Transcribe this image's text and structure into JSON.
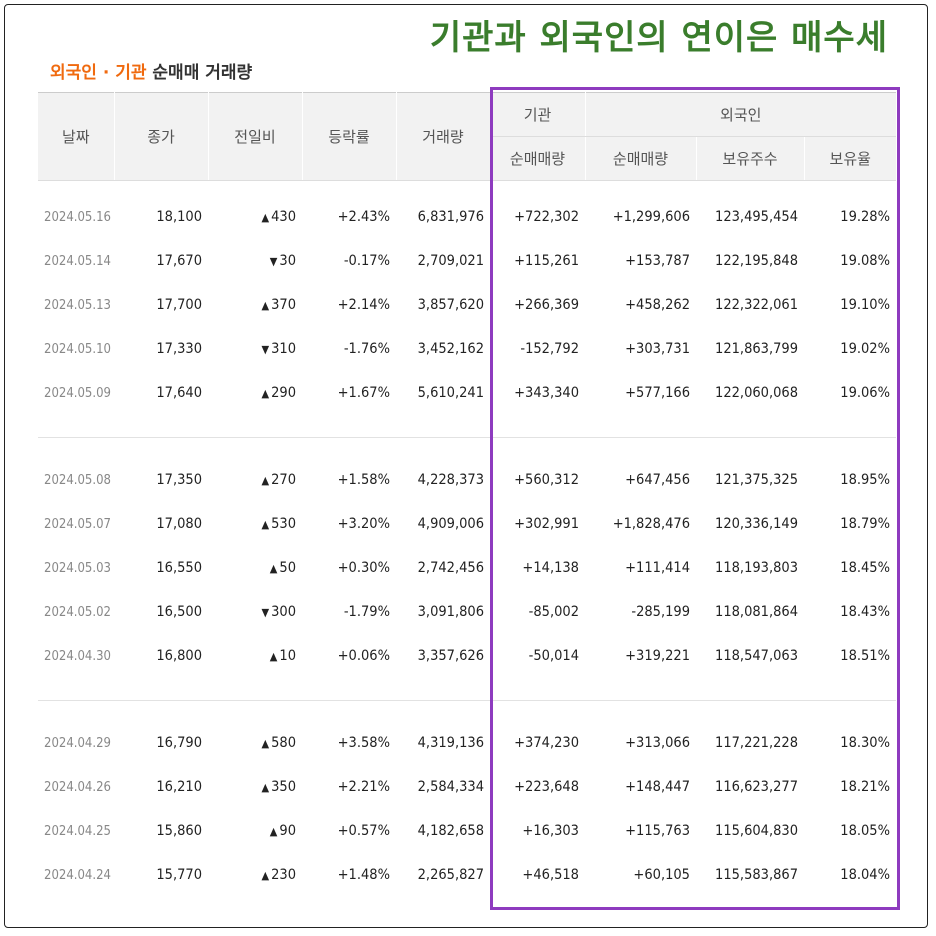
{
  "headline": "기관과 외국인의 연이은 매수세",
  "section_title": {
    "highlight": "외국인 · 기관",
    "rest": "순매매 거래량"
  },
  "headers": {
    "date": "날짜",
    "close": "종가",
    "change": "전일비",
    "rate": "등락률",
    "volume": "거래량",
    "institution": "기관",
    "foreign": "외국인",
    "inst_net": "순매매량",
    "foreign_net": "순매매량",
    "foreign_shares": "보유주수",
    "foreign_ratio": "보유율"
  },
  "groups": [
    {
      "rows": [
        {
          "date": "2024.05.16",
          "close": "18,100",
          "dir": "up",
          "change": "430",
          "rate": "+2.43%",
          "volume": "6,831,976",
          "inst": "+722,302",
          "foreign": "+1,299,606",
          "shares": "123,495,454",
          "ratio": "19.28%"
        },
        {
          "date": "2024.05.14",
          "close": "17,670",
          "dir": "down",
          "change": "30",
          "rate": "-0.17%",
          "volume": "2,709,021",
          "inst": "+115,261",
          "foreign": "+153,787",
          "shares": "122,195,848",
          "ratio": "19.08%"
        },
        {
          "date": "2024.05.13",
          "close": "17,700",
          "dir": "up",
          "change": "370",
          "rate": "+2.14%",
          "volume": "3,857,620",
          "inst": "+266,369",
          "foreign": "+458,262",
          "shares": "122,322,061",
          "ratio": "19.10%"
        },
        {
          "date": "2024.05.10",
          "close": "17,330",
          "dir": "down",
          "change": "310",
          "rate": "-1.76%",
          "volume": "3,452,162",
          "inst": "-152,792",
          "foreign": "+303,731",
          "shares": "121,863,799",
          "ratio": "19.02%"
        },
        {
          "date": "2024.05.09",
          "close": "17,640",
          "dir": "up",
          "change": "290",
          "rate": "+1.67%",
          "volume": "5,610,241",
          "inst": "+343,340",
          "foreign": "+577,166",
          "shares": "122,060,068",
          "ratio": "19.06%"
        }
      ]
    },
    {
      "rows": [
        {
          "date": "2024.05.08",
          "close": "17,350",
          "dir": "up",
          "change": "270",
          "rate": "+1.58%",
          "volume": "4,228,373",
          "inst": "+560,312",
          "foreign": "+647,456",
          "shares": "121,375,325",
          "ratio": "18.95%"
        },
        {
          "date": "2024.05.07",
          "close": "17,080",
          "dir": "up",
          "change": "530",
          "rate": "+3.20%",
          "volume": "4,909,006",
          "inst": "+302,991",
          "foreign": "+1,828,476",
          "shares": "120,336,149",
          "ratio": "18.79%"
        },
        {
          "date": "2024.05.03",
          "close": "16,550",
          "dir": "up",
          "change": "50",
          "rate": "+0.30%",
          "volume": "2,742,456",
          "inst": "+14,138",
          "foreign": "+111,414",
          "shares": "118,193,803",
          "ratio": "18.45%"
        },
        {
          "date": "2024.05.02",
          "close": "16,500",
          "dir": "down",
          "change": "300",
          "rate": "-1.79%",
          "volume": "3,091,806",
          "inst": "-85,002",
          "foreign": "-285,199",
          "shares": "118,081,864",
          "ratio": "18.43%"
        },
        {
          "date": "2024.04.30",
          "close": "16,800",
          "dir": "up",
          "change": "10",
          "rate": "+0.06%",
          "volume": "3,357,626",
          "inst": "-50,014",
          "foreign": "+319,221",
          "shares": "118,547,063",
          "ratio": "18.51%"
        }
      ]
    },
    {
      "rows": [
        {
          "date": "2024.04.29",
          "close": "16,790",
          "dir": "up",
          "change": "580",
          "rate": "+3.58%",
          "volume": "4,319,136",
          "inst": "+374,230",
          "foreign": "+313,066",
          "shares": "117,221,228",
          "ratio": "18.30%"
        },
        {
          "date": "2024.04.26",
          "close": "16,210",
          "dir": "up",
          "change": "350",
          "rate": "+2.21%",
          "volume": "2,584,334",
          "inst": "+223,648",
          "foreign": "+148,447",
          "shares": "116,623,277",
          "ratio": "18.21%"
        },
        {
          "date": "2024.04.25",
          "close": "15,860",
          "dir": "up",
          "change": "90",
          "rate": "+0.57%",
          "volume": "4,182,658",
          "inst": "+16,303",
          "foreign": "+115,763",
          "shares": "115,604,830",
          "ratio": "18.05%"
        },
        {
          "date": "2024.04.24",
          "close": "15,770",
          "dir": "up",
          "change": "230",
          "rate": "+1.48%",
          "volume": "2,265,827",
          "inst": "+46,518",
          "foreign": "+60,105",
          "shares": "115,583,867",
          "ratio": "18.04%"
        }
      ]
    }
  ],
  "colors": {
    "up": "#d81e1e",
    "down": "#1a64d6",
    "headline": "#3a7d2c",
    "accent": "#f06a0f",
    "highlight_box": "#8e3bbf"
  },
  "icons": {
    "up": "triangle-up",
    "down": "triangle-down"
  }
}
